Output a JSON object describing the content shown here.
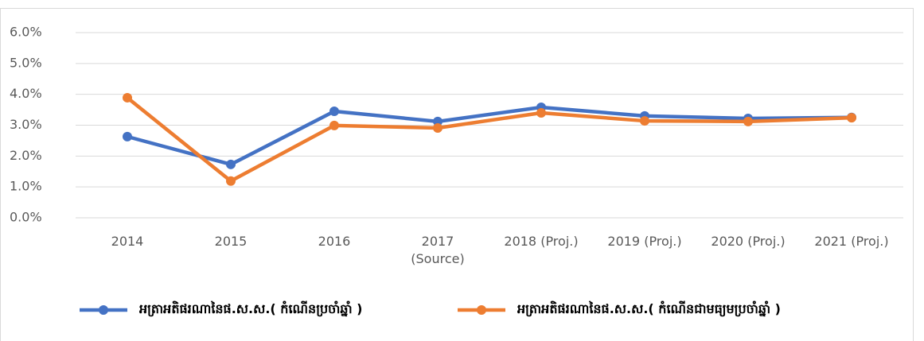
{
  "chart_data": {
    "type": "line",
    "categories": [
      "2014",
      "2015",
      "2016",
      "2017\n(Source)",
      "2018 (Proj.)",
      "2019 (Proj.)",
      "2020 (Proj.)",
      "2021 (Proj.)"
    ],
    "series": [
      {
        "name": "អត្រាអតិផរណានៃផ.ស.ស.( កំណើនប្រចាំឆ្នាំ )",
        "color": "#4472c4",
        "values": [
          2.63,
          1.73,
          3.45,
          3.12,
          3.58,
          3.3,
          3.22,
          3.25
        ]
      },
      {
        "name": "អត្រាអតិផរណានៃផ.ស.ស.( កំណើនជាមធ្យមប្រចាំឆ្នាំ )",
        "color": "#ed7d31",
        "values": [
          3.89,
          1.19,
          2.99,
          2.91,
          3.4,
          3.14,
          3.12,
          3.24
        ]
      }
    ],
    "ylim": [
      0,
      6
    ],
    "yticks": [
      {
        "value": 0,
        "label": "0.0%"
      },
      {
        "value": 1,
        "label": "1.0%"
      },
      {
        "value": 2,
        "label": "2.0%"
      },
      {
        "value": 3,
        "label": "3.0%"
      },
      {
        "value": 4,
        "label": "4.0%"
      },
      {
        "value": 5,
        "label": "5.0%"
      },
      {
        "value": 6,
        "label": "6.0%"
      }
    ],
    "grid": true,
    "legend": "bottom"
  }
}
